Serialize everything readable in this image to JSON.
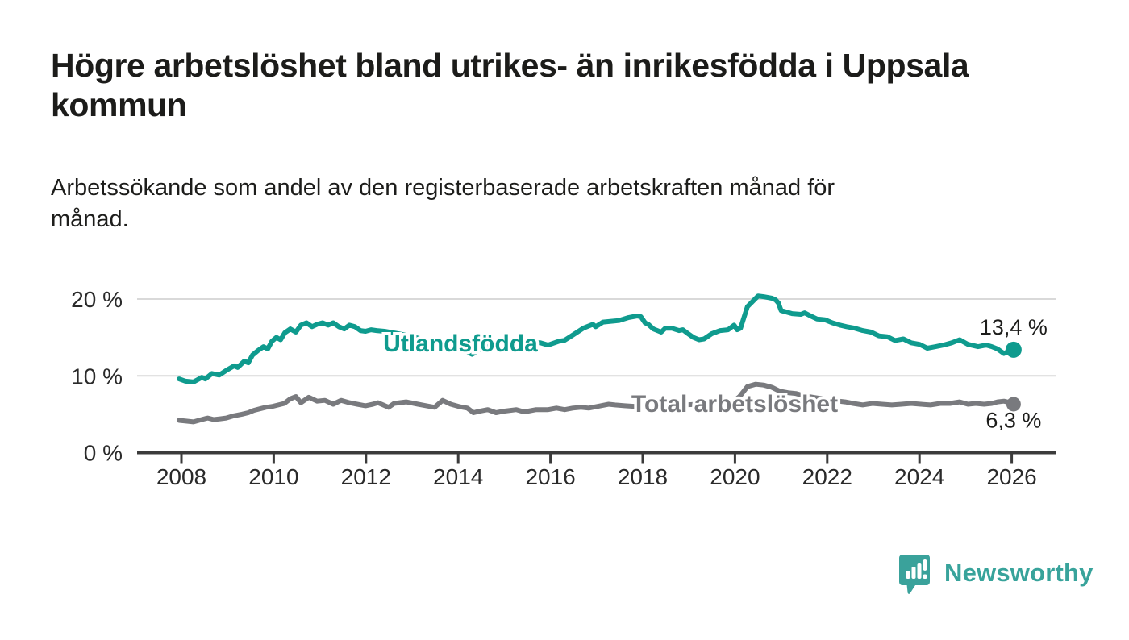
{
  "header": {
    "title_lines": [
      "Högre arbetslöshet bland utrikes- än inrikesfödda i Uppsala",
      "kommun"
    ],
    "subtitle_lines": [
      "Arbetssökande som andel av den registerbaserade arbetskraften månad för",
      "månad."
    ]
  },
  "footer": {
    "brand": "Newsworthy",
    "logo_icon": "newsworthy-speech-bubble-bar-chart-icon"
  },
  "colors": {
    "series_utlandsfodda": "#0f9b8e",
    "series_total": "#797a7e",
    "gridline": "#d9d9d9",
    "axis": "#3b3b3b",
    "text_dark": "#1d1d1b",
    "axis_label": "#2a2a2a",
    "brand_teal": "#3aa29b"
  },
  "chart_data": {
    "type": "line",
    "title": "Högre arbetslöshet bland utrikes- än inrikesfödda i Uppsala kommun",
    "subtitle": "Arbetssökande som andel av den registerbaserade arbetskraften månad för månad.",
    "unit": "%",
    "grid": true,
    "legend_position": "inline-labels",
    "x_axis": {
      "range": [
        2007.05,
        2026.95
      ],
      "ticks": [
        2008,
        2010,
        2012,
        2014,
        2016,
        2018,
        2020,
        2022,
        2024,
        2026
      ]
    },
    "y_axis": {
      "range": [
        0,
        23
      ],
      "ticks": [
        {
          "value": 0,
          "label": "0 %"
        },
        {
          "value": 10,
          "label": "10 %"
        },
        {
          "value": 20,
          "label": "20 %"
        }
      ],
      "grid_values": [
        10,
        20
      ]
    },
    "series": [
      {
        "name": "Utlandsfödda",
        "color": "#0f9b8e",
        "end_label": "13,4 %",
        "end_value": 13.4,
        "points": [
          [
            2007.95,
            9.6
          ],
          [
            2008.09,
            9.3
          ],
          [
            2008.26,
            9.2
          ],
          [
            2008.44,
            9.8
          ],
          [
            2008.52,
            9.6
          ],
          [
            2008.66,
            10.3
          ],
          [
            2008.82,
            10.1
          ],
          [
            2008.97,
            10.7
          ],
          [
            2009.14,
            11.3
          ],
          [
            2009.22,
            11.1
          ],
          [
            2009.36,
            11.9
          ],
          [
            2009.45,
            11.7
          ],
          [
            2009.54,
            12.7
          ],
          [
            2009.66,
            13.3
          ],
          [
            2009.78,
            13.8
          ],
          [
            2009.87,
            13.5
          ],
          [
            2009.96,
            14.5
          ],
          [
            2010.06,
            15.0
          ],
          [
            2010.15,
            14.7
          ],
          [
            2010.24,
            15.6
          ],
          [
            2010.36,
            16.1
          ],
          [
            2010.48,
            15.7
          ],
          [
            2010.59,
            16.6
          ],
          [
            2010.71,
            16.9
          ],
          [
            2010.83,
            16.4
          ],
          [
            2010.94,
            16.7
          ],
          [
            2011.06,
            16.9
          ],
          [
            2011.18,
            16.6
          ],
          [
            2011.29,
            16.9
          ],
          [
            2011.41,
            16.4
          ],
          [
            2011.53,
            16.1
          ],
          [
            2011.64,
            16.6
          ],
          [
            2011.76,
            16.4
          ],
          [
            2011.88,
            15.9
          ],
          [
            2011.99,
            15.8
          ],
          [
            2012.11,
            16.0
          ],
          [
            2012.23,
            15.9
          ],
          [
            2012.4,
            15.8
          ],
          [
            2012.7,
            15.5
          ],
          [
            2013.0,
            15.1
          ],
          [
            2013.4,
            14.5
          ],
          [
            2013.8,
            13.8
          ],
          [
            2014.1,
            13.4
          ],
          [
            2014.3,
            12.8
          ],
          [
            2014.55,
            13.7
          ],
          [
            2014.9,
            14.2
          ],
          [
            2015.2,
            14.1
          ],
          [
            2015.5,
            14.3
          ],
          [
            2015.78,
            14.3
          ],
          [
            2015.95,
            14.0
          ],
          [
            2016.18,
            14.5
          ],
          [
            2016.3,
            14.6
          ],
          [
            2016.48,
            15.3
          ],
          [
            2016.71,
            16.2
          ],
          [
            2016.92,
            16.7
          ],
          [
            2016.98,
            16.4
          ],
          [
            2017.14,
            17.0
          ],
          [
            2017.48,
            17.2
          ],
          [
            2017.7,
            17.6
          ],
          [
            2017.88,
            17.8
          ],
          [
            2017.96,
            17.7
          ],
          [
            2018.05,
            16.9
          ],
          [
            2018.12,
            16.7
          ],
          [
            2018.23,
            16.1
          ],
          [
            2018.4,
            15.7
          ],
          [
            2018.49,
            16.2
          ],
          [
            2018.63,
            16.2
          ],
          [
            2018.79,
            15.9
          ],
          [
            2018.87,
            16.0
          ],
          [
            2018.98,
            15.5
          ],
          [
            2019.1,
            15.0
          ],
          [
            2019.22,
            14.7
          ],
          [
            2019.33,
            14.8
          ],
          [
            2019.5,
            15.5
          ],
          [
            2019.68,
            15.9
          ],
          [
            2019.85,
            16.0
          ],
          [
            2019.98,
            16.6
          ],
          [
            2020.05,
            16.0
          ],
          [
            2020.12,
            16.2
          ],
          [
            2020.27,
            19.0
          ],
          [
            2020.5,
            20.4
          ],
          [
            2020.62,
            20.3
          ],
          [
            2020.8,
            20.1
          ],
          [
            2020.88,
            19.9
          ],
          [
            2020.94,
            19.5
          ],
          [
            2021.0,
            18.5
          ],
          [
            2021.12,
            18.3
          ],
          [
            2021.24,
            18.1
          ],
          [
            2021.43,
            18.0
          ],
          [
            2021.51,
            18.2
          ],
          [
            2021.64,
            17.8
          ],
          [
            2021.78,
            17.4
          ],
          [
            2021.95,
            17.3
          ],
          [
            2022.11,
            16.9
          ],
          [
            2022.28,
            16.6
          ],
          [
            2022.42,
            16.4
          ],
          [
            2022.6,
            16.2
          ],
          [
            2022.77,
            15.9
          ],
          [
            2022.95,
            15.7
          ],
          [
            2023.12,
            15.2
          ],
          [
            2023.3,
            15.1
          ],
          [
            2023.47,
            14.6
          ],
          [
            2023.65,
            14.8
          ],
          [
            2023.82,
            14.3
          ],
          [
            2024.0,
            14.1
          ],
          [
            2024.17,
            13.6
          ],
          [
            2024.35,
            13.8
          ],
          [
            2024.52,
            14.0
          ],
          [
            2024.7,
            14.3
          ],
          [
            2024.87,
            14.7
          ],
          [
            2025.05,
            14.1
          ],
          [
            2025.27,
            13.8
          ],
          [
            2025.45,
            14.0
          ],
          [
            2025.57,
            13.8
          ],
          [
            2025.69,
            13.5
          ],
          [
            2025.83,
            12.9
          ],
          [
            2025.97,
            13.3
          ],
          [
            2026.04,
            13.4
          ]
        ]
      },
      {
        "name": "Total arbetslöshet",
        "color": "#797a7e",
        "end_label": "6,3 %",
        "end_value": 6.3,
        "points": [
          [
            2007.95,
            4.2
          ],
          [
            2008.1,
            4.1
          ],
          [
            2008.26,
            4.0
          ],
          [
            2008.44,
            4.3
          ],
          [
            2008.57,
            4.5
          ],
          [
            2008.7,
            4.3
          ],
          [
            2008.84,
            4.4
          ],
          [
            2008.97,
            4.5
          ],
          [
            2009.14,
            4.8
          ],
          [
            2009.31,
            5.0
          ],
          [
            2009.45,
            5.2
          ],
          [
            2009.57,
            5.5
          ],
          [
            2009.7,
            5.7
          ],
          [
            2009.83,
            5.9
          ],
          [
            2009.96,
            6.0
          ],
          [
            2010.1,
            6.2
          ],
          [
            2010.23,
            6.4
          ],
          [
            2010.36,
            7.0
          ],
          [
            2010.48,
            7.3
          ],
          [
            2010.59,
            6.5
          ],
          [
            2010.76,
            7.2
          ],
          [
            2010.94,
            6.7
          ],
          [
            2011.11,
            6.8
          ],
          [
            2011.29,
            6.3
          ],
          [
            2011.46,
            6.8
          ],
          [
            2011.64,
            6.5
          ],
          [
            2011.81,
            6.3
          ],
          [
            2011.99,
            6.1
          ],
          [
            2012.15,
            6.3
          ],
          [
            2012.26,
            6.5
          ],
          [
            2012.49,
            5.9
          ],
          [
            2012.61,
            6.4
          ],
          [
            2012.87,
            6.6
          ],
          [
            2013.13,
            6.3
          ],
          [
            2013.31,
            6.1
          ],
          [
            2013.49,
            5.9
          ],
          [
            2013.66,
            6.8
          ],
          [
            2013.84,
            6.3
          ],
          [
            2014.02,
            6.0
          ],
          [
            2014.2,
            5.8
          ],
          [
            2014.33,
            5.2
          ],
          [
            2014.47,
            5.4
          ],
          [
            2014.64,
            5.6
          ],
          [
            2014.82,
            5.2
          ],
          [
            2014.99,
            5.4
          ],
          [
            2015.26,
            5.6
          ],
          [
            2015.43,
            5.3
          ],
          [
            2015.69,
            5.6
          ],
          [
            2015.95,
            5.6
          ],
          [
            2016.13,
            5.8
          ],
          [
            2016.31,
            5.6
          ],
          [
            2016.48,
            5.8
          ],
          [
            2016.66,
            5.9
          ],
          [
            2016.83,
            5.8
          ],
          [
            2017.09,
            6.1
          ],
          [
            2017.26,
            6.3
          ],
          [
            2017.4,
            6.2
          ],
          [
            2017.61,
            6.1
          ],
          [
            2017.87,
            6.0
          ],
          [
            2018.13,
            5.9
          ],
          [
            2018.4,
            6.0
          ],
          [
            2018.66,
            6.1
          ],
          [
            2018.92,
            6.2
          ],
          [
            2019.18,
            6.3
          ],
          [
            2019.44,
            6.4
          ],
          [
            2019.7,
            6.5
          ],
          [
            2019.96,
            6.6
          ],
          [
            2020.1,
            7.3
          ],
          [
            2020.27,
            8.6
          ],
          [
            2020.45,
            8.9
          ],
          [
            2020.62,
            8.8
          ],
          [
            2020.8,
            8.5
          ],
          [
            2020.97,
            8.0
          ],
          [
            2021.15,
            7.8
          ],
          [
            2021.32,
            7.7
          ],
          [
            2021.5,
            7.4
          ],
          [
            2021.7,
            7.2
          ],
          [
            2021.9,
            7.0
          ],
          [
            2022.1,
            6.8
          ],
          [
            2022.39,
            6.6
          ],
          [
            2022.56,
            6.4
          ],
          [
            2022.77,
            6.2
          ],
          [
            2022.98,
            6.4
          ],
          [
            2023.19,
            6.3
          ],
          [
            2023.4,
            6.2
          ],
          [
            2023.61,
            6.3
          ],
          [
            2023.82,
            6.4
          ],
          [
            2024.03,
            6.3
          ],
          [
            2024.24,
            6.2
          ],
          [
            2024.45,
            6.4
          ],
          [
            2024.66,
            6.4
          ],
          [
            2024.87,
            6.6
          ],
          [
            2025.05,
            6.3
          ],
          [
            2025.22,
            6.4
          ],
          [
            2025.4,
            6.3
          ],
          [
            2025.57,
            6.4
          ],
          [
            2025.69,
            6.6
          ],
          [
            2025.83,
            6.7
          ],
          [
            2025.97,
            6.5
          ],
          [
            2026.04,
            6.3
          ]
        ]
      }
    ]
  }
}
